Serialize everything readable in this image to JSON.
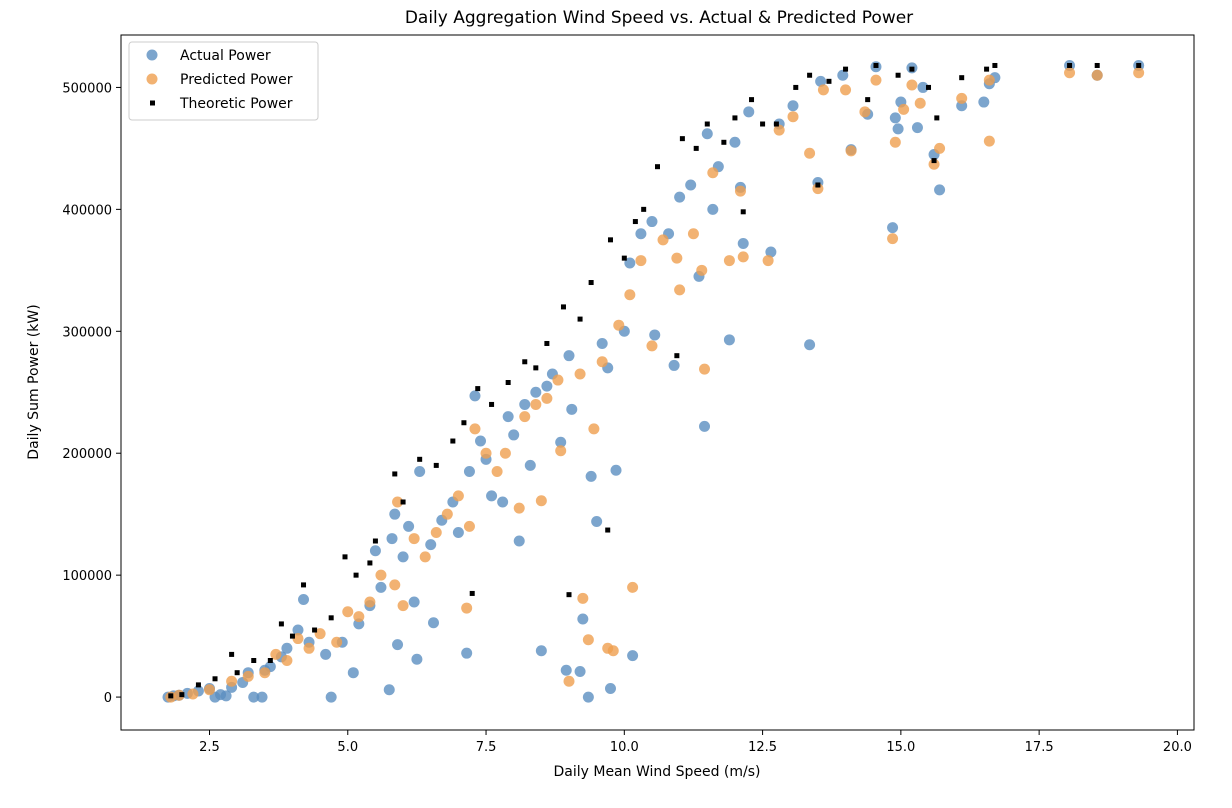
{
  "chart_data": {
    "type": "scatter",
    "title": "Daily Aggregation Wind Speed vs. Actual & Predicted Power",
    "xlabel": "Daily Mean Wind Speed (m/s)",
    "ylabel": "Daily Sum Power (kW)",
    "xlim": [
      0.9,
      20.3
    ],
    "ylim": [
      -27000,
      543000
    ],
    "xticks": [
      2.5,
      5.0,
      7.5,
      10.0,
      12.5,
      15.0,
      17.5,
      20.0
    ],
    "xtick_labels": [
      "2.5",
      "5.0",
      "7.5",
      "10.0",
      "12.5",
      "15.0",
      "17.5",
      "20.0"
    ],
    "yticks": [
      0,
      100000,
      200000,
      300000,
      400000,
      500000
    ],
    "ytick_labels": [
      "0",
      "100000",
      "200000",
      "300000",
      "400000",
      "500000"
    ],
    "legend_position": "top-left",
    "grid": false,
    "series": [
      {
        "name": "Actual Power",
        "color": "#5b8ec1",
        "marker": "circle",
        "points": [
          [
            1.75,
            0
          ],
          [
            1.85,
            1000
          ],
          [
            1.95,
            1500
          ],
          [
            2.1,
            3000
          ],
          [
            2.3,
            5000
          ],
          [
            2.5,
            7000
          ],
          [
            2.6,
            0
          ],
          [
            2.7,
            2000
          ],
          [
            2.8,
            1000
          ],
          [
            2.9,
            8000
          ],
          [
            3.1,
            12000
          ],
          [
            3.3,
            0
          ],
          [
            3.45,
            0
          ],
          [
            3.2,
            20000
          ],
          [
            3.5,
            22000
          ],
          [
            3.6,
            25000
          ],
          [
            3.8,
            33000
          ],
          [
            3.9,
            40000
          ],
          [
            4.1,
            55000
          ],
          [
            4.2,
            80000
          ],
          [
            4.3,
            45000
          ],
          [
            4.6,
            35000
          ],
          [
            4.7,
            0
          ],
          [
            4.9,
            45000
          ],
          [
            5.1,
            20000
          ],
          [
            5.2,
            60000
          ],
          [
            5.4,
            75000
          ],
          [
            5.5,
            120000
          ],
          [
            5.6,
            90000
          ],
          [
            5.75,
            6000
          ],
          [
            5.9,
            43000
          ],
          [
            5.8,
            130000
          ],
          [
            5.85,
            150000
          ],
          [
            6.0,
            115000
          ],
          [
            6.1,
            140000
          ],
          [
            6.2,
            78000
          ],
          [
            6.25,
            31000
          ],
          [
            6.3,
            185000
          ],
          [
            6.5,
            125000
          ],
          [
            6.55,
            61000
          ],
          [
            6.7,
            145000
          ],
          [
            6.9,
            160000
          ],
          [
            7.0,
            135000
          ],
          [
            7.15,
            36000
          ],
          [
            7.2,
            185000
          ],
          [
            7.3,
            247000
          ],
          [
            7.4,
            210000
          ],
          [
            7.5,
            195000
          ],
          [
            7.6,
            165000
          ],
          [
            7.8,
            160000
          ],
          [
            7.9,
            230000
          ],
          [
            8.0,
            215000
          ],
          [
            8.1,
            128000
          ],
          [
            8.2,
            240000
          ],
          [
            8.3,
            190000
          ],
          [
            8.4,
            250000
          ],
          [
            8.5,
            38000
          ],
          [
            8.6,
            255000
          ],
          [
            8.7,
            265000
          ],
          [
            8.85,
            209000
          ],
          [
            8.95,
            22000
          ],
          [
            9.0,
            280000
          ],
          [
            9.05,
            236000
          ],
          [
            9.2,
            21000
          ],
          [
            9.25,
            64000
          ],
          [
            9.4,
            181000
          ],
          [
            9.5,
            144000
          ],
          [
            9.6,
            290000
          ],
          [
            9.7,
            270000
          ],
          [
            9.75,
            7000
          ],
          [
            9.85,
            186000
          ],
          [
            9.35,
            0
          ],
          [
            10.0,
            300000
          ],
          [
            10.1,
            356000
          ],
          [
            10.15,
            34000
          ],
          [
            10.3,
            380000
          ],
          [
            10.5,
            390000
          ],
          [
            10.55,
            297000
          ],
          [
            10.8,
            380000
          ],
          [
            10.9,
            272000
          ],
          [
            11.0,
            410000
          ],
          [
            11.2,
            420000
          ],
          [
            11.35,
            345000
          ],
          [
            11.45,
            222000
          ],
          [
            11.5,
            462000
          ],
          [
            11.6,
            400000
          ],
          [
            11.7,
            435000
          ],
          [
            11.9,
            293000
          ],
          [
            12.0,
            455000
          ],
          [
            12.1,
            418000
          ],
          [
            12.15,
            372000
          ],
          [
            12.25,
            480000
          ],
          [
            12.65,
            365000
          ],
          [
            12.8,
            470000
          ],
          [
            13.05,
            485000
          ],
          [
            13.35,
            289000
          ],
          [
            13.5,
            422000
          ],
          [
            13.55,
            505000
          ],
          [
            13.95,
            510000
          ],
          [
            14.1,
            449000
          ],
          [
            14.4,
            478000
          ],
          [
            14.55,
            517000
          ],
          [
            14.85,
            385000
          ],
          [
            14.9,
            475000
          ],
          [
            14.95,
            466000
          ],
          [
            15.0,
            488000
          ],
          [
            15.2,
            516000
          ],
          [
            15.3,
            467000
          ],
          [
            15.4,
            500000
          ],
          [
            15.6,
            445000
          ],
          [
            15.7,
            416000
          ],
          [
            16.1,
            485000
          ],
          [
            16.5,
            488000
          ],
          [
            16.6,
            503000
          ],
          [
            16.7,
            508000
          ],
          [
            18.05,
            518000
          ],
          [
            18.55,
            510000
          ],
          [
            19.3,
            518000
          ]
        ]
      },
      {
        "name": "Predicted Power",
        "color": "#ef9f4f",
        "marker": "circle",
        "points": [
          [
            1.8,
            0
          ],
          [
            1.95,
            1500
          ],
          [
            2.2,
            2500
          ],
          [
            2.5,
            6000
          ],
          [
            2.9,
            13000
          ],
          [
            3.2,
            17000
          ],
          [
            3.5,
            20000
          ],
          [
            3.7,
            35000
          ],
          [
            3.9,
            30000
          ],
          [
            4.1,
            48000
          ],
          [
            4.3,
            40000
          ],
          [
            4.5,
            52000
          ],
          [
            4.8,
            45000
          ],
          [
            5.0,
            70000
          ],
          [
            5.2,
            66000
          ],
          [
            5.4,
            78000
          ],
          [
            5.6,
            100000
          ],
          [
            5.85,
            92000
          ],
          [
            5.9,
            160000
          ],
          [
            6.0,
            75000
          ],
          [
            6.2,
            130000
          ],
          [
            6.4,
            115000
          ],
          [
            6.6,
            135000
          ],
          [
            6.8,
            150000
          ],
          [
            7.0,
            165000
          ],
          [
            7.15,
            73000
          ],
          [
            7.2,
            140000
          ],
          [
            7.3,
            220000
          ],
          [
            7.5,
            200000
          ],
          [
            7.7,
            185000
          ],
          [
            7.85,
            200000
          ],
          [
            8.1,
            155000
          ],
          [
            8.2,
            230000
          ],
          [
            8.4,
            240000
          ],
          [
            8.5,
            161000
          ],
          [
            8.6,
            245000
          ],
          [
            8.8,
            260000
          ],
          [
            8.85,
            202000
          ],
          [
            9.0,
            13000
          ],
          [
            9.2,
            265000
          ],
          [
            9.25,
            81000
          ],
          [
            9.35,
            47000
          ],
          [
            9.45,
            220000
          ],
          [
            9.6,
            275000
          ],
          [
            9.7,
            40000
          ],
          [
            9.8,
            38000
          ],
          [
            9.9,
            305000
          ],
          [
            10.1,
            330000
          ],
          [
            10.15,
            90000
          ],
          [
            10.3,
            358000
          ],
          [
            10.5,
            288000
          ],
          [
            10.7,
            375000
          ],
          [
            10.95,
            360000
          ],
          [
            11.0,
            334000
          ],
          [
            11.25,
            380000
          ],
          [
            11.4,
            350000
          ],
          [
            11.45,
            269000
          ],
          [
            11.6,
            430000
          ],
          [
            11.9,
            358000
          ],
          [
            12.1,
            415000
          ],
          [
            12.15,
            361000
          ],
          [
            12.6,
            358000
          ],
          [
            12.8,
            465000
          ],
          [
            13.05,
            476000
          ],
          [
            13.35,
            446000
          ],
          [
            13.5,
            417000
          ],
          [
            13.6,
            498000
          ],
          [
            14.0,
            498000
          ],
          [
            14.1,
            448000
          ],
          [
            14.35,
            480000
          ],
          [
            14.55,
            506000
          ],
          [
            14.85,
            376000
          ],
          [
            14.9,
            455000
          ],
          [
            15.05,
            482000
          ],
          [
            15.2,
            502000
          ],
          [
            15.35,
            487000
          ],
          [
            15.6,
            437000
          ],
          [
            15.7,
            450000
          ],
          [
            16.1,
            491000
          ],
          [
            16.6,
            456000
          ],
          [
            16.6,
            506000
          ],
          [
            18.05,
            512000
          ],
          [
            18.55,
            510000
          ],
          [
            19.3,
            512000
          ]
        ]
      },
      {
        "name": "Theoretic Power",
        "color": "#000000",
        "marker": "square",
        "points": [
          [
            1.8,
            1000
          ],
          [
            2.0,
            2000
          ],
          [
            2.3,
            10000
          ],
          [
            2.6,
            15000
          ],
          [
            2.9,
            35000
          ],
          [
            3.0,
            20000
          ],
          [
            3.3,
            30000
          ],
          [
            3.6,
            30000
          ],
          [
            3.8,
            60000
          ],
          [
            4.0,
            50000
          ],
          [
            4.2,
            92000
          ],
          [
            4.4,
            55000
          ],
          [
            4.7,
            65000
          ],
          [
            4.95,
            115000
          ],
          [
            5.15,
            100000
          ],
          [
            5.4,
            110000
          ],
          [
            5.5,
            128000
          ],
          [
            5.85,
            183000
          ],
          [
            6.0,
            160000
          ],
          [
            6.3,
            195000
          ],
          [
            6.6,
            190000
          ],
          [
            6.9,
            210000
          ],
          [
            7.1,
            225000
          ],
          [
            7.25,
            85000
          ],
          [
            7.35,
            253000
          ],
          [
            7.6,
            240000
          ],
          [
            7.9,
            258000
          ],
          [
            8.2,
            275000
          ],
          [
            8.4,
            270000
          ],
          [
            8.6,
            290000
          ],
          [
            8.9,
            320000
          ],
          [
            9.0,
            84000
          ],
          [
            9.2,
            310000
          ],
          [
            9.4,
            340000
          ],
          [
            9.7,
            137000
          ],
          [
            9.75,
            375000
          ],
          [
            10.0,
            360000
          ],
          [
            10.2,
            390000
          ],
          [
            10.35,
            400000
          ],
          [
            10.6,
            435000
          ],
          [
            10.95,
            280000
          ],
          [
            11.05,
            458000
          ],
          [
            11.3,
            450000
          ],
          [
            11.5,
            470000
          ],
          [
            11.8,
            455000
          ],
          [
            12.0,
            475000
          ],
          [
            12.15,
            398000
          ],
          [
            12.3,
            490000
          ],
          [
            12.5,
            470000
          ],
          [
            12.75,
            470000
          ],
          [
            13.1,
            500000
          ],
          [
            13.35,
            510000
          ],
          [
            13.5,
            420000
          ],
          [
            13.7,
            505000
          ],
          [
            14.0,
            515000
          ],
          [
            14.4,
            490000
          ],
          [
            14.55,
            518000
          ],
          [
            14.95,
            510000
          ],
          [
            15.2,
            515000
          ],
          [
            15.5,
            500000
          ],
          [
            15.65,
            475000
          ],
          [
            15.6,
            440000
          ],
          [
            16.1,
            508000
          ],
          [
            16.55,
            515000
          ],
          [
            16.7,
            518000
          ],
          [
            18.05,
            518000
          ],
          [
            18.55,
            518000
          ],
          [
            19.3,
            518000
          ]
        ]
      }
    ]
  }
}
